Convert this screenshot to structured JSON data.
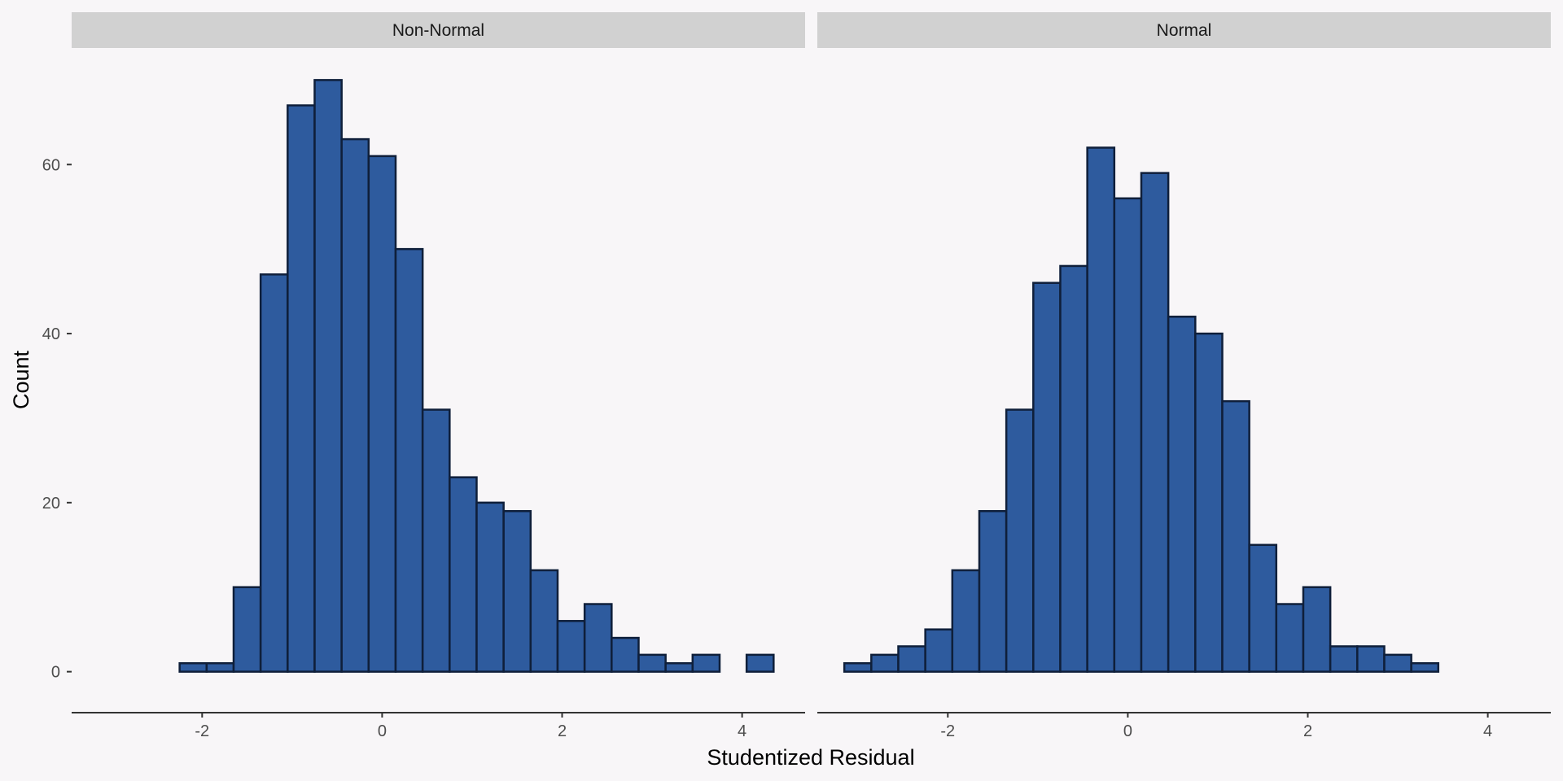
{
  "chart_data": {
    "type": "bar",
    "subtype": "histogram",
    "xlabel": "Studentized Residual",
    "ylabel": "Count",
    "x_ticks": [
      -2,
      0,
      2,
      4
    ],
    "y_ticks": [
      0,
      20,
      40,
      60
    ],
    "xlim": [
      -3.45,
      4.7
    ],
    "ylim": [
      -3.5,
      73.5
    ],
    "grid": false,
    "legend": "none",
    "bin_width": 0.3,
    "colors": {
      "fill": "#2e5b9e",
      "outline": "#0f1f3a",
      "strip": "#d1d1d1",
      "background": "#f8f6f8",
      "axis": "#333333"
    },
    "panels": [
      {
        "strip_label": "Non-Normal",
        "bin_start": -3.15,
        "counts": [
          0,
          0,
          0,
          1,
          1,
          10,
          47,
          67,
          70,
          63,
          61,
          50,
          31,
          23,
          20,
          19,
          12,
          6,
          8,
          4,
          2,
          1,
          2,
          0,
          2
        ]
      },
      {
        "strip_label": "Normal",
        "bin_start": -3.15,
        "counts": [
          1,
          2,
          3,
          5,
          12,
          19,
          31,
          46,
          48,
          62,
          56,
          59,
          42,
          40,
          32,
          15,
          8,
          10,
          3,
          3,
          2,
          1,
          0,
          0,
          0
        ]
      }
    ]
  }
}
